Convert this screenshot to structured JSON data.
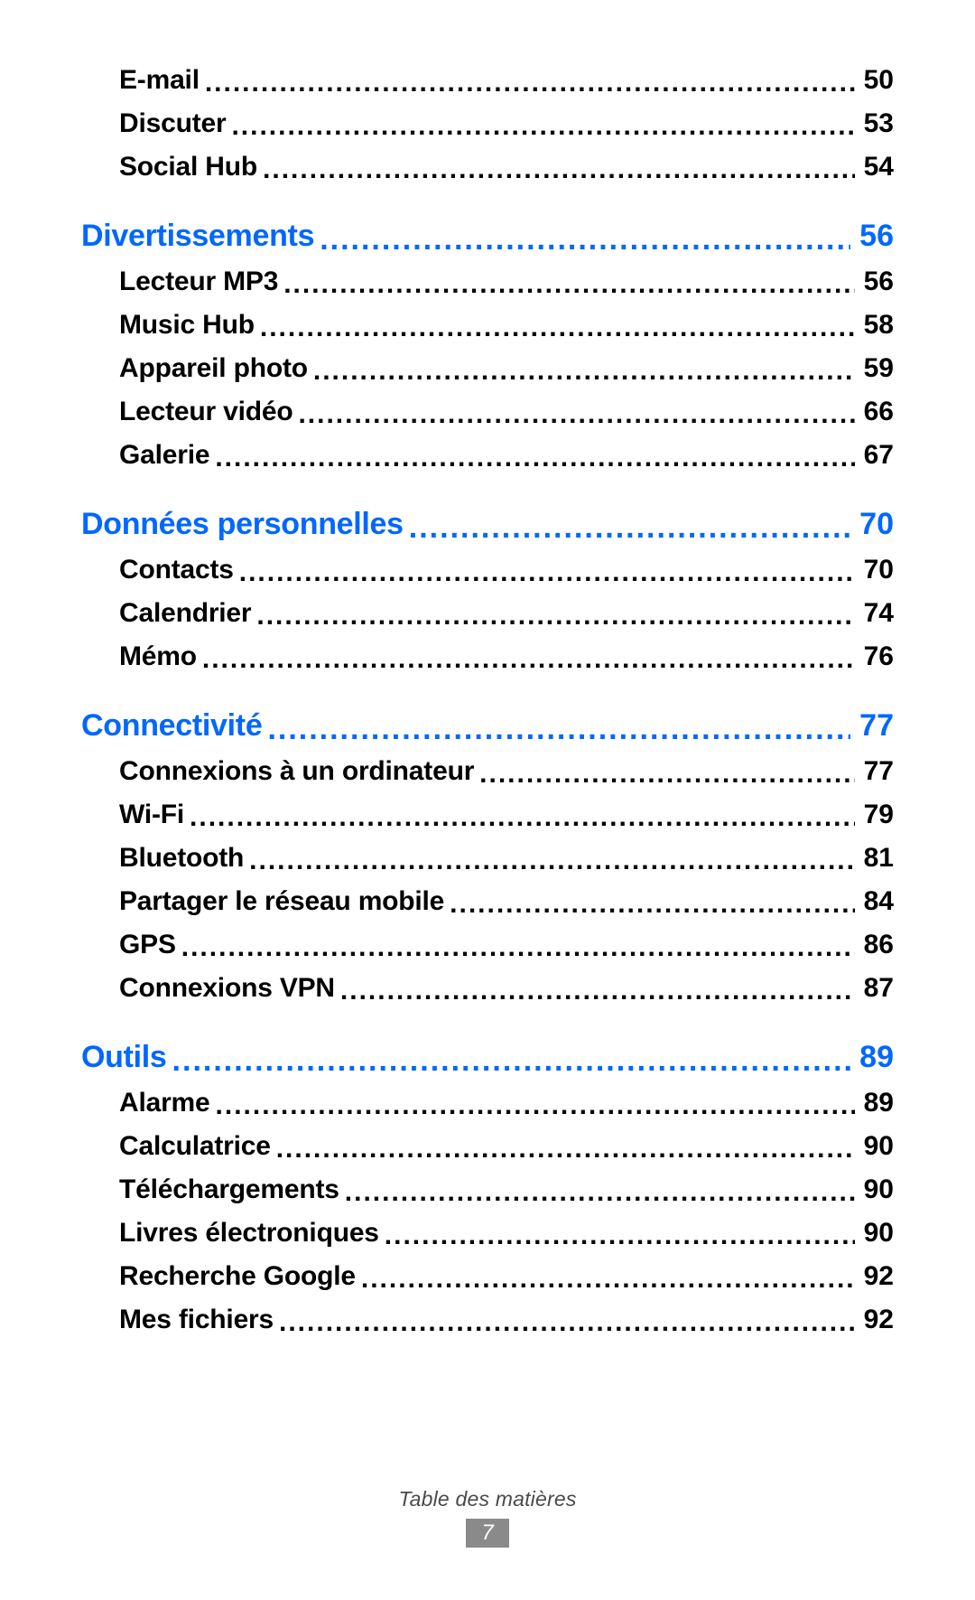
{
  "colors": {
    "section": "#0067ff",
    "text": "#000000",
    "footer_text": "#4a4a4a",
    "badge_bg": "#8a8a8a",
    "badge_text": "#ffffff",
    "background": "#ffffff"
  },
  "leaders_char": ".",
  "leaders_repeat": 200,
  "toc": [
    {
      "type": "sub",
      "label": "E-mail",
      "page": "50"
    },
    {
      "type": "sub",
      "label": "Discuter",
      "page": "53"
    },
    {
      "type": "sub",
      "label": "Social Hub",
      "page": "54"
    },
    {
      "type": "section",
      "label": "Divertissements",
      "page": "56"
    },
    {
      "type": "sub",
      "label": "Lecteur MP3",
      "page": "56"
    },
    {
      "type": "sub",
      "label": "Music Hub",
      "page": "58"
    },
    {
      "type": "sub",
      "label": "Appareil photo",
      "page": "59"
    },
    {
      "type": "sub",
      "label": "Lecteur vidéo",
      "page": "66"
    },
    {
      "type": "sub",
      "label": "Galerie",
      "page": "67"
    },
    {
      "type": "section",
      "label": "Données personnelles",
      "page": "70"
    },
    {
      "type": "sub",
      "label": "Contacts",
      "page": "70"
    },
    {
      "type": "sub",
      "label": "Calendrier",
      "page": "74"
    },
    {
      "type": "sub",
      "label": "Mémo",
      "page": "76"
    },
    {
      "type": "section",
      "label": "Connectivité",
      "page": "77"
    },
    {
      "type": "sub",
      "label": "Connexions à un ordinateur",
      "page": "77"
    },
    {
      "type": "sub",
      "label": "Wi-Fi",
      "page": "79"
    },
    {
      "type": "sub",
      "label": "Bluetooth",
      "page": "81"
    },
    {
      "type": "sub",
      "label": "Partager le réseau mobile",
      "page": "84"
    },
    {
      "type": "sub",
      "label": "GPS",
      "page": "86"
    },
    {
      "type": "sub",
      "label": "Connexions VPN",
      "page": "87"
    },
    {
      "type": "section",
      "label": "Outils",
      "page": "89"
    },
    {
      "type": "sub",
      "label": "Alarme",
      "page": "89"
    },
    {
      "type": "sub",
      "label": "Calculatrice",
      "page": "90"
    },
    {
      "type": "sub",
      "label": "Téléchargements",
      "page": "90"
    },
    {
      "type": "sub",
      "label": "Livres électroniques",
      "page": "90"
    },
    {
      "type": "sub",
      "label": "Recherche Google",
      "page": "92"
    },
    {
      "type": "sub",
      "label": "Mes fichiers",
      "page": "92"
    }
  ],
  "footer": {
    "label": "Table des matières",
    "page_number": "7"
  }
}
